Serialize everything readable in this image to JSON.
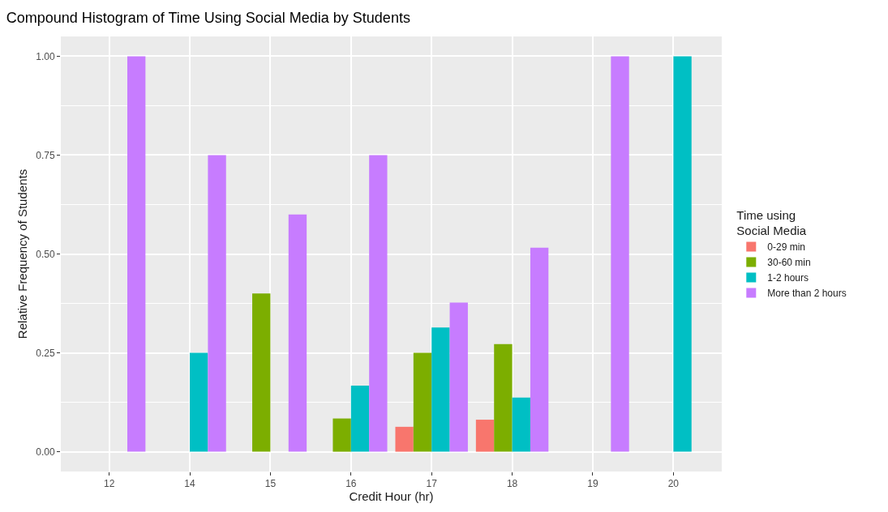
{
  "chart_data": {
    "type": "bar",
    "title": "Compound Histogram of Time Using Social Media by Students",
    "xlabel": "Credit Hour (hr)",
    "ylabel": "Relative Frequency of Students",
    "legend_title": "Time using\nSocial Media",
    "categories": [
      "12",
      "14",
      "15",
      "16",
      "17",
      "18",
      "19",
      "20"
    ],
    "series": [
      {
        "name": "0-29 min",
        "color": "#f8766d",
        "values": [
          null,
          null,
          null,
          null,
          0.063,
          0.081,
          null,
          null
        ]
      },
      {
        "name": "30-60 min",
        "color": "#7cae00",
        "values": [
          null,
          null,
          0.4,
          0.084,
          0.25,
          0.272,
          null,
          null
        ]
      },
      {
        "name": "1-2 hours",
        "color": "#00bfc4",
        "values": [
          null,
          0.25,
          null,
          0.167,
          0.314,
          0.137,
          null,
          1.0
        ]
      },
      {
        "name": "More than 2 hours",
        "color": "#c77cff",
        "values": [
          1.0,
          0.75,
          0.6,
          0.75,
          0.377,
          0.516,
          1.0,
          null
        ]
      }
    ],
    "ylim": [
      -0.05,
      1.05
    ],
    "yticks": [
      {
        "value": 0,
        "label": "0.00"
      },
      {
        "value": 0.25,
        "label": "0.25"
      },
      {
        "value": 0.5,
        "label": "0.50"
      },
      {
        "value": 0.75,
        "label": "0.75"
      },
      {
        "value": 1,
        "label": "1.00"
      }
    ],
    "grid": true,
    "legend": "right"
  }
}
